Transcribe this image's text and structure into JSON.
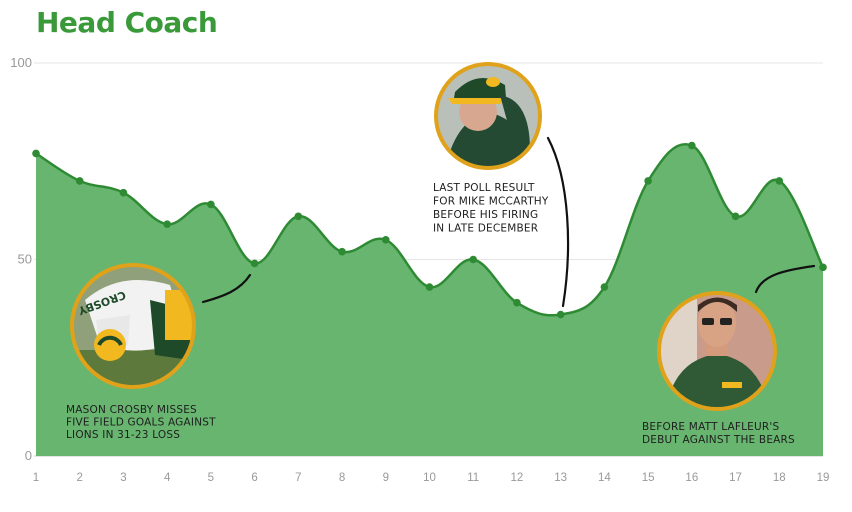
{
  "chart_data": {
    "type": "area",
    "title": "Head Coach",
    "xlabel": "",
    "ylabel": "",
    "x": [
      1,
      2,
      3,
      4,
      5,
      6,
      7,
      8,
      9,
      10,
      11,
      12,
      13,
      14,
      15,
      16,
      17,
      18,
      19
    ],
    "values": [
      77,
      70,
      67,
      59,
      64,
      49,
      61,
      52,
      55,
      43,
      50,
      39,
      36,
      43,
      70,
      79,
      61,
      70,
      48
    ],
    "ylim": [
      0,
      100
    ],
    "yticks": [
      0,
      50,
      100
    ],
    "grid": true,
    "annotations": [
      {
        "text": [
          "MASON CROSBY MISSES",
          "FIVE FIELD GOALS AGAINST",
          "LIONS IN 31-23 LOSS"
        ],
        "x": 6,
        "image": "kicker-photo"
      },
      {
        "text": [
          "LAST POLL RESULT",
          "FOR MIKE MCCARTHY",
          "BEFORE HIS FIRING",
          "IN LATE DECEMBER"
        ],
        "x": 13,
        "image": "coach-mccarthy-photo"
      },
      {
        "text": [
          "BEFORE MATT LAFLEUR'S",
          "DEBUT AGAINST THE BEARS"
        ],
        "x": 19,
        "image": "coach-lafleur-photo"
      }
    ],
    "colors": {
      "title": "#3a9a3a",
      "line": "#2e8b34",
      "fill": "#68b570",
      "photo_ring": "#e0a21a"
    }
  }
}
